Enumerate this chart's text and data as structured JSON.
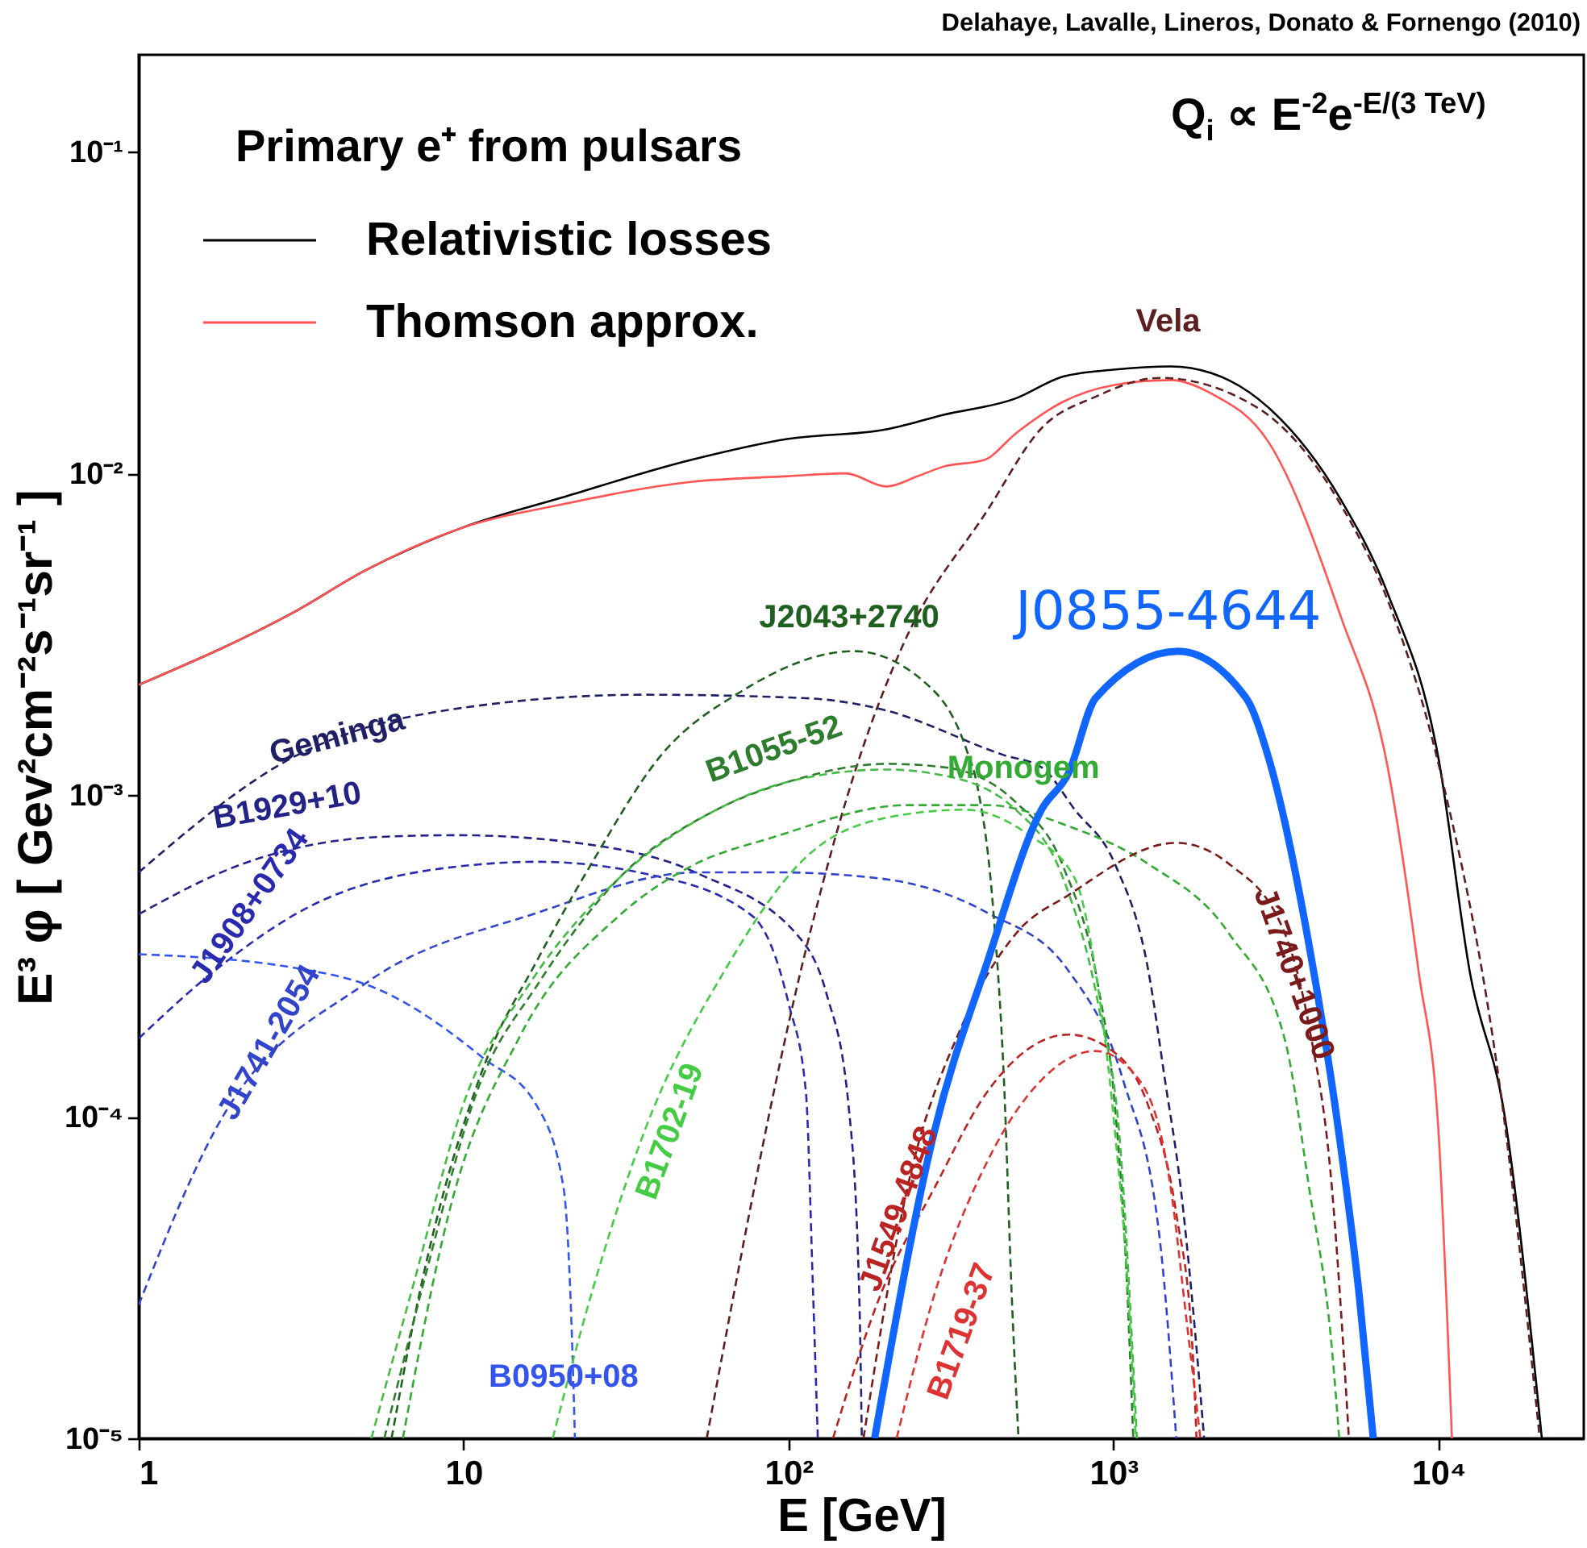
{
  "chart_data": {
    "type": "line",
    "xlabel": "E [GeV]",
    "ylabel": "E³ φ  [ Gev²cm⁻²s⁻¹sr⁻¹ ]",
    "log": "xy",
    "legend": "top left",
    "grid": false,
    "xlim": [
      1,
      28000
    ],
    "xticks": [
      1,
      10,
      {
        "value": 100,
        "label": "10²"
      },
      {
        "value": 1000,
        "label": "10³"
      },
      {
        "value": 10000,
        "label": "10⁴"
      }
    ],
    "ylim": [
      1e-05,
      0.2
    ],
    "yticks": [
      {
        "value": 1e-05,
        "label": "10⁻⁵"
      },
      {
        "value": 0.0001,
        "label": "10⁻⁴"
      },
      {
        "value": 0.001,
        "label": "10⁻³"
      },
      {
        "value": 0.01,
        "label": "10⁻²"
      },
      {
        "value": 0.1,
        "label": "10⁻¹"
      }
    ],
    "annotations": [
      "Delahaye, Lavalle, Lineros, Donato & Fornengo (2010)",
      "Primary e⁺ from pulsars",
      "Q$_{i}$ ∝ E$^{-2}$e$^{-E/(3 TeV)}$"
    ],
    "series": [
      {
        "name": "Relativistic losses",
        "color": "#000000",
        "line_style": "solid",
        "x": [
          1,
          3,
          5,
          10,
          20,
          50,
          100,
          200,
          300,
          500,
          700,
          1000,
          1500,
          2000,
          3000,
          5000,
          7000,
          10000,
          12500,
          16000,
          20800
        ],
        "values": [
          0.0022,
          0.0037,
          0.005,
          0.0068,
          0.0084,
          0.011,
          0.0128,
          0.0137,
          0.0152,
          0.0171,
          0.02,
          0.021,
          0.0215,
          0.0205,
          0.016,
          0.0083,
          0.0042,
          0.0013,
          0.00028,
          0.0001,
          1e-05
        ]
      },
      {
        "name": "Thomson approx.",
        "color": "#ff5555",
        "line_style": "solid",
        "x": [
          1,
          3,
          5,
          10,
          20,
          50,
          100,
          150,
          200,
          250,
          300,
          400,
          500,
          700,
          1000,
          1500,
          2000,
          3000,
          5000,
          7000,
          8700,
          10000,
          11000
        ],
        "values": [
          0.0022,
          0.0037,
          0.005,
          0.0068,
          0.008,
          0.0094,
          0.0098,
          0.01,
          0.0091,
          0.0098,
          0.0105,
          0.011,
          0.0133,
          0.0167,
          0.0188,
          0.0195,
          0.0177,
          0.0125,
          0.0036,
          0.0012,
          0.00028,
          9e-05,
          1e-05
        ]
      },
      {
        "name": "Vela",
        "color": "#5c1f1f",
        "line_style": "dashed",
        "x": [
          56,
          113,
          165,
          224,
          410,
          600,
          880,
          1390,
          2770,
          5000,
          7000,
          10000,
          16000,
          20500
        ],
        "values": [
          1e-05,
          0.00033,
          0.0013,
          0.0029,
          0.0077,
          0.0138,
          0.0173,
          0.0198,
          0.016,
          0.008,
          0.004,
          0.00125,
          9.5e-05,
          1e-05
        ]
      },
      {
        "name": "Geminga",
        "color": "#1f1f66",
        "line_style": "dashed",
        "x": [
          1,
          3.03,
          7.9,
          36,
          113,
          192,
          460,
          600,
          760,
          1010,
          1280,
          1440,
          1610,
          1740,
          1900
        ],
        "values": [
          0.000575,
          0.00132,
          0.0018,
          0.00205,
          0.002,
          0.00185,
          0.00133,
          0.00122,
          0.0009,
          0.00061,
          0.000284,
          0.00013,
          6e-05,
          2.8e-05,
          1e-05
        ]
      },
      {
        "name": "B1929+10",
        "color": "#222288",
        "line_style": "dashed",
        "x": [
          1,
          2.08,
          5.4,
          9.5,
          24.7,
          52.6,
          113,
          131,
          153,
          165,
          168
        ],
        "values": [
          0.000426,
          0.00061,
          0.00074,
          0.00075,
          0.0007,
          0.00057,
          0.00034,
          0.00024,
          0.000108,
          2.8e-05,
          1e-05
        ]
      },
      {
        "name": "J1908+0734",
        "color": "#2a2ab0",
        "line_style": "dashed",
        "x": [
          1,
          1.71,
          3.67,
          11.5,
          16.8,
          36,
          77.5,
          100,
          113,
          119,
          123
        ],
        "values": [
          0.000175,
          0.000284,
          0.00047,
          0.00061,
          0.00062,
          0.00057,
          0.00042,
          0.000225,
          0.00012,
          2.8e-05,
          1e-05
        ]
      },
      {
        "name": "J1741-2054",
        "color": "#3344cc",
        "line_style": "dashed",
        "x": [
          1,
          1.71,
          5,
          16.8,
          52.6,
          90,
          192,
          410,
          727,
          1070,
          1390,
          1560
        ],
        "values": [
          2.6e-05,
          9e-05,
          0.00026,
          0.00043,
          0.000575,
          0.000575,
          0.00055,
          0.00043,
          0.000284,
          0.00013,
          4.1e-05,
          1e-05
        ]
      },
      {
        "name": "B0950+08",
        "color": "#3355ee",
        "line_style": "dashed",
        "x": [
          1,
          3.03,
          5.4,
          11.5,
          16.8,
          20.3,
          21.6,
          22
        ],
        "values": [
          0.00032,
          0.00029,
          0.00025,
          0.000152,
          0.000108,
          6e-05,
          1.9e-05,
          1e-05
        ]
      },
      {
        "name": "J2043+2740",
        "color": "#1f5f1f",
        "line_style": "dashed",
        "x": [
          6,
          7.3,
          11.5,
          16.8,
          24.7,
          40.3,
          71.6,
          159,
          281,
          354,
          380,
          428,
          460,
          486,
          510
        ],
        "values": [
          1e-05,
          2.8e-05,
          0.000142,
          0.000305,
          0.00061,
          0.00132,
          0.0021,
          0.0028,
          0.0021,
          0.00137,
          0.00108,
          0.00042,
          0.00013,
          2.8e-05,
          1e-05
        ]
      },
      {
        "name": "B1055-52",
        "color": "#2e7d2e",
        "line_style": "dashed",
        "x": [
          5.7,
          7.5,
          11,
          17,
          30,
          60,
          100,
          200,
          300,
          500,
          700,
          900,
          1000,
          1100,
          1150
        ],
        "values": [
          1e-05,
          3e-05,
          0.00012,
          0.00026,
          0.00055,
          0.0009,
          0.0011,
          0.00125,
          0.00122,
          0.00095,
          0.0006,
          0.00025,
          0.00012,
          3e-05,
          1e-05
        ]
      },
      {
        "color": "#44bb44",
        "line_style": "dashed",
        "x": [
          5.2,
          7,
          10,
          16,
          30,
          60,
          100,
          200,
          300,
          500,
          700,
          900,
          1050,
          1180
        ],
        "values": [
          1e-05,
          3e-05,
          0.00011,
          0.00026,
          0.00055,
          0.0009,
          0.0011,
          0.0012,
          0.00115,
          0.0009,
          0.00055,
          0.00022,
          8e-05,
          1e-05
        ]
      },
      {
        "name": "Monogem",
        "color": "#33aa33",
        "line_style": "dashed",
        "x": [
          6.5,
          9,
          15,
          30,
          50,
          90,
          232,
          410,
          727,
          1280,
          2270,
          3370,
          4000,
          4700,
          4950
        ],
        "values": [
          1e-05,
          5e-05,
          0.00018,
          0.00042,
          0.0006,
          0.00074,
          0.00093,
          0.00093,
          0.0008,
          0.00061,
          0.00037,
          0.000173,
          6e-05,
          1.9e-05,
          1e-05
        ]
      },
      {
        "name": "B1702-19",
        "color": "#44cc44",
        "line_style": "dashed",
        "x": [
          18.8,
          24.7,
          36,
          63.5,
          113,
          200,
          350,
          550,
          760,
          880,
          1010,
          1110,
          1170
        ],
        "values": [
          1e-05,
          2.8e-05,
          9e-05,
          0.000284,
          0.00064,
          0.00085,
          0.0009,
          0.00075,
          0.00055,
          0.000284,
          9e-05,
          2.8e-05,
          1e-05
        ]
      },
      {
        "name": "J1549-4848",
        "color": "#bb2222",
        "line_style": "dashed",
        "x": [
          137,
          192,
          281,
          410,
          727,
          950,
          1280,
          1560,
          1750,
          1800
        ],
        "values": [
          1e-05,
          2.8e-05,
          6e-05,
          0.00012,
          0.00018,
          0.000165,
          0.000108,
          5e-05,
          1.9e-05,
          1e-05
        ]
      },
      {
        "name": "B1719-37",
        "color": "#dd3333",
        "line_style": "dashed",
        "x": [
          215,
          281,
          410,
          600,
          880,
          1200,
          1500,
          1680,
          1850
        ],
        "values": [
          1e-05,
          2.8e-05,
          7.3e-05,
          0.00013,
          0.00016,
          0.00013,
          6e-05,
          2.3e-05,
          1e-05
        ]
      },
      {
        "name": "J1740+1000",
        "color": "#7a1a1a",
        "line_style": "dashed",
        "x": [
          170,
          232,
          340,
          500,
          730,
          1560,
          2270,
          3370,
          4000,
          4700,
          5100,
          5300
        ],
        "values": [
          1e-05,
          6e-05,
          0.00019,
          0.00037,
          0.00049,
          0.00071,
          0.00061,
          0.00037,
          0.00019,
          6e-05,
          1.9e-05,
          1e-05
        ]
      },
      {
        "name": "J0855-4644",
        "color": "#1166ff",
        "line_style": "solid",
        "x": [
          184,
          281,
          410,
          600,
          727,
          880,
          1580,
          2560,
          2990,
          4000,
          4930,
          5700,
          6300
        ],
        "values": [
          1e-05,
          9e-05,
          0.000305,
          0.0009,
          0.00117,
          0.002,
          0.0028,
          0.002,
          0.00132,
          0.00034,
          9e-05,
          2.8e-05,
          1e-05
        ]
      }
    ]
  }
}
